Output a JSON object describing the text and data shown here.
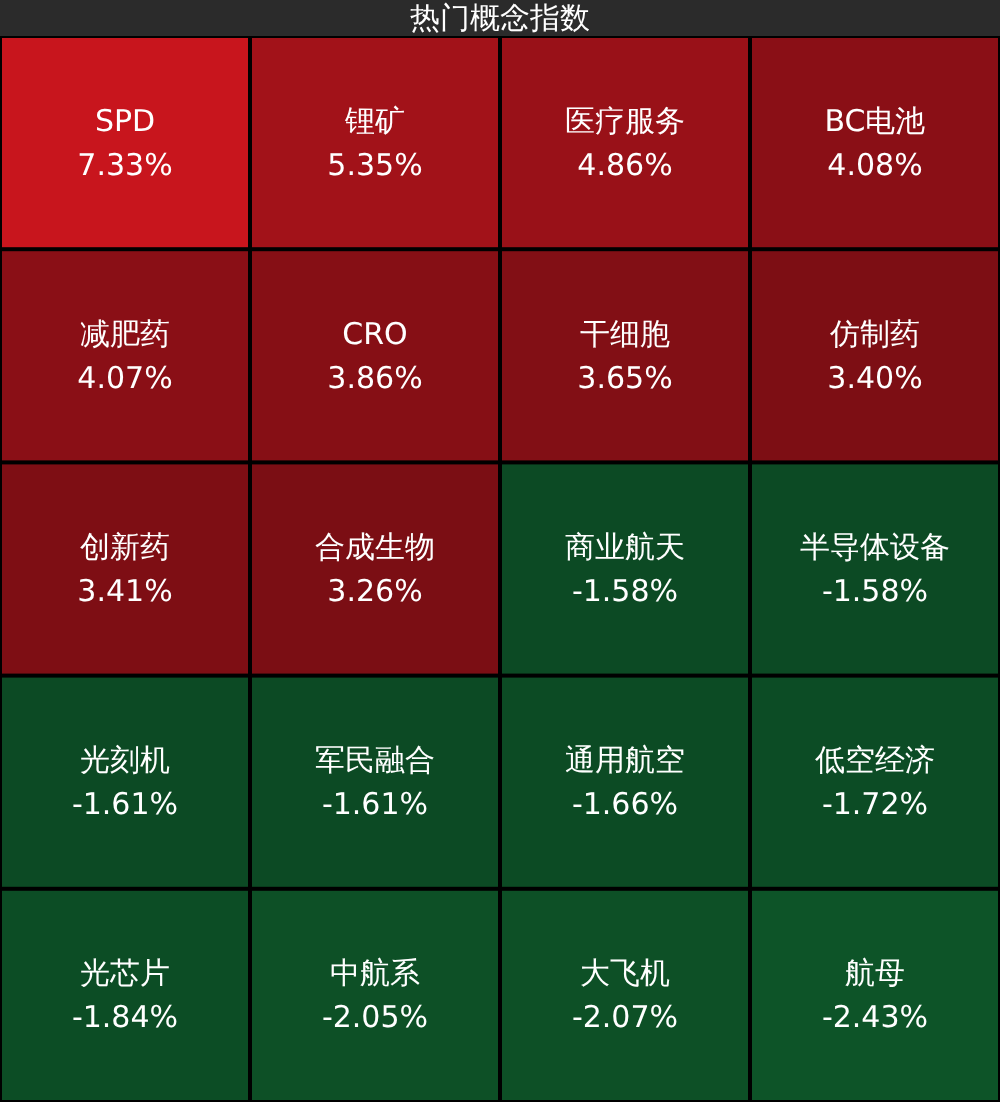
{
  "chart_data": {
    "type": "other",
    "title": "热门概念指数",
    "categories": [
      "SPD",
      "锂矿",
      "医疗服务",
      "BC电池",
      "减肥药",
      "CRO",
      "干细胞",
      "仿制药",
      "创新药",
      "合成生物",
      "商业航天",
      "半导体设备",
      "光刻机",
      "军民融合",
      "通用航空",
      "低空经济",
      "光芯片",
      "中航系",
      "大飞机",
      "航母"
    ],
    "values": [
      7.33,
      5.35,
      4.86,
      4.08,
      4.07,
      3.86,
      3.65,
      3.4,
      3.41,
      3.26,
      -1.58,
      -1.58,
      -1.61,
      -1.61,
      -1.66,
      -1.72,
      -1.84,
      -2.05,
      -2.07,
      -2.43
    ],
    "value_labels": [
      "7.33%",
      "5.35%",
      "4.86%",
      "4.08%",
      "4.07%",
      "3.86%",
      "3.65%",
      "3.40%",
      "3.41%",
      "3.26%",
      "-1.58%",
      "-1.58%",
      "-1.61%",
      "-1.61%",
      "-1.66%",
      "-1.72%",
      "-1.84%",
      "-2.05%",
      "-2.07%",
      "-2.43%"
    ]
  }
}
